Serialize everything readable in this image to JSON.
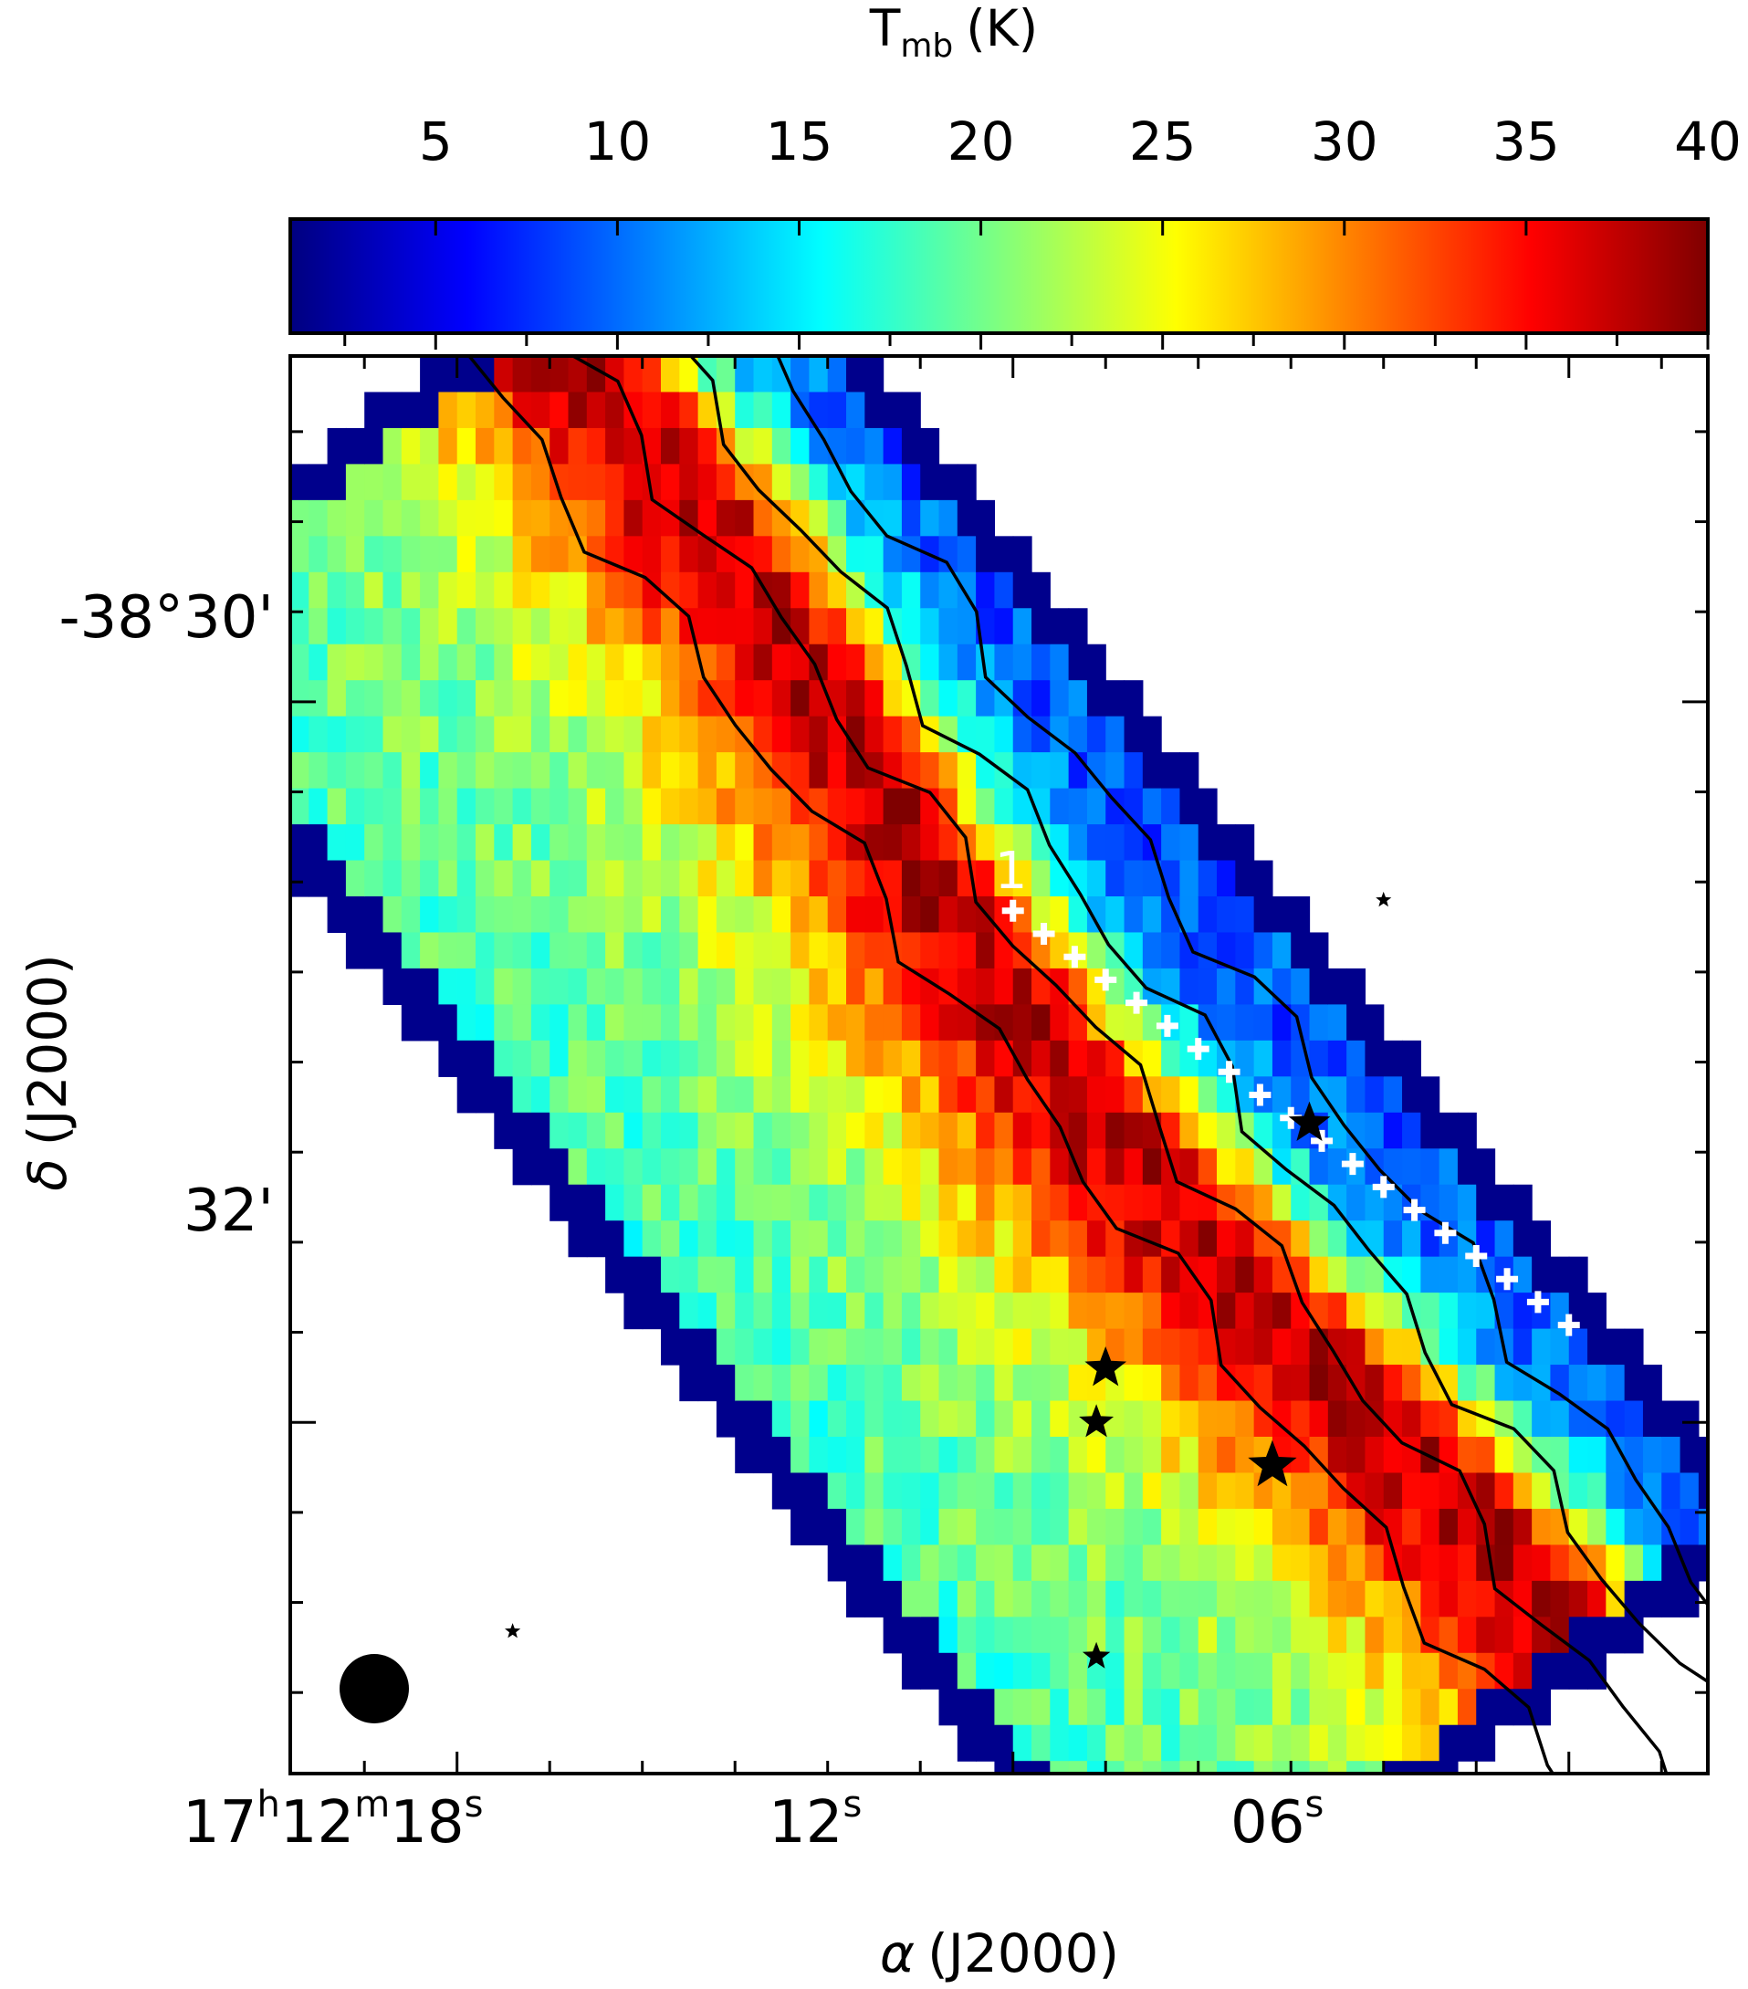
{
  "chart_data": {
    "type": "heatmap",
    "title": "",
    "colorbar": {
      "label_main": "T",
      "label_sub": "mb",
      "label_unit": "(K)",
      "range": [
        1,
        40
      ],
      "ticks": [
        "5",
        "10",
        "15",
        "20",
        "25",
        "30",
        "35",
        "40"
      ],
      "tick_values": [
        5,
        10,
        15,
        20,
        25,
        30,
        35,
        40
      ],
      "colormap": "jet",
      "colormap_stops": [
        "#00007f",
        "#0000ff",
        "#007fff",
        "#00ffff",
        "#7fff7f",
        "#ffff00",
        "#ff7f00",
        "#ff0000",
        "#7f0000"
      ]
    },
    "xaxis": {
      "label_greek": "α",
      "label_text": "(J2000)",
      "range_sec": [
        19.8,
        4.5
      ],
      "ticks": [
        {
          "sec": 18,
          "hours": "17",
          "h": "h",
          "minutes": "12",
          "m": "m",
          "seconds": "18",
          "s": "s"
        },
        {
          "sec": 12,
          "seconds": "12",
          "s": "s"
        },
        {
          "sec": 6,
          "seconds": "06",
          "s": "s"
        }
      ]
    },
    "yaxis": {
      "label_greek": "δ",
      "label_text": "(J2000)",
      "range_arcmin": [
        -32.975,
        -29.04
      ],
      "ticks": [
        {
          "arcmin": -30.0,
          "label": "-38°30'"
        },
        {
          "arcmin": -32.0,
          "label": "32'"
        }
      ]
    },
    "ridge": {
      "start_x_sec": 12.9,
      "start_dec": -30.1,
      "end_x_sec": 5.7,
      "end_dec": -32.5,
      "dec_offset_near": -0.43,
      "dec_offset_far": 1.48,
      "ridge_temperature_K": 38,
      "far_side_temperature_K": 21,
      "near_side_temperature_K": 9
    },
    "cut": {
      "label": "1",
      "start": {
        "sec": 12.0,
        "dec": -30.58
      },
      "end": {
        "sec": 6.0,
        "dec": -31.73
      },
      "points": 19
    },
    "stars": [
      {
        "sec": 11.0,
        "dec": -31.85,
        "size": "large"
      },
      {
        "sec": 8.8,
        "dec": -31.17,
        "size": "large"
      },
      {
        "sec": 11.1,
        "dec": -32.0,
        "size": "medium"
      },
      {
        "sec": 9.2,
        "dec": -32.12,
        "size": "xlarge"
      },
      {
        "sec": 11.1,
        "dec": -32.65,
        "size": "small"
      },
      {
        "sec": 8.0,
        "dec": -30.55,
        "size": "tiny"
      },
      {
        "sec": 17.4,
        "dec": -32.58,
        "size": "tiny"
      }
    ],
    "beam": {
      "sec": 17.8,
      "dec": -34.7
    },
    "grid": false,
    "legend": "none"
  }
}
